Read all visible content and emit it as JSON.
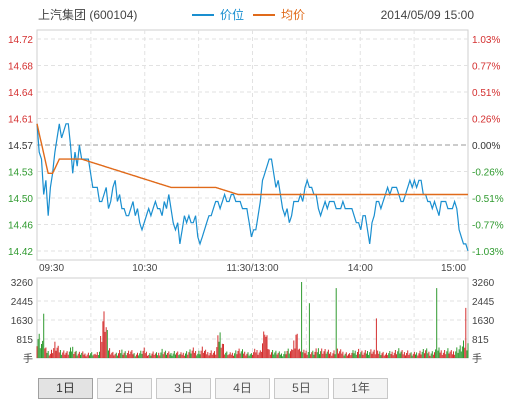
{
  "header": {
    "stock_name": "上汽集团 (600104)",
    "legend_price": "价位",
    "legend_avg": "均价",
    "datetime": "2014/05/09 15:00"
  },
  "colors": {
    "price_line": "#1a8fd0",
    "avg_line": "#e06a1a",
    "up": "#d42f2f",
    "down": "#2f9a2f",
    "grid": "#e2e2e2",
    "prev_close_line": "#999999"
  },
  "tabs": [
    "1日",
    "2日",
    "3日",
    "4日",
    "5日",
    "1年"
  ],
  "active_tab": 0,
  "chart_data": {
    "type": "line",
    "prev_close": 14.57,
    "price_ticks": [
      "14.72",
      "14.68",
      "14.64",
      "14.61",
      "14.57",
      "14.53",
      "14.50",
      "14.46",
      "14.42"
    ],
    "pct_ticks": [
      "1.03%",
      "0.77%",
      "0.51%",
      "0.26%",
      "0.00%",
      "-0.26%",
      "-0.51%",
      "-0.77%",
      "-1.03%"
    ],
    "ylim": [
      14.42,
      14.72
    ],
    "time_ticks": [
      "09:30",
      "10:30",
      "11:30/13:00",
      "14:00",
      "15:00"
    ],
    "price_keyframes": [
      [
        0,
        14.6
      ],
      [
        2,
        14.56
      ],
      [
        4,
        14.55
      ],
      [
        6,
        14.5
      ],
      [
        8,
        14.52
      ],
      [
        10,
        14.47
      ],
      [
        12,
        14.51
      ],
      [
        14,
        14.53
      ],
      [
        16,
        14.56
      ],
      [
        18,
        14.58
      ],
      [
        20,
        14.6
      ],
      [
        22,
        14.58
      ],
      [
        24,
        14.59
      ],
      [
        26,
        14.6
      ],
      [
        28,
        14.6
      ],
      [
        30,
        14.57
      ],
      [
        32,
        14.53
      ],
      [
        34,
        14.56
      ],
      [
        36,
        14.54
      ],
      [
        38,
        14.57
      ],
      [
        40,
        14.55
      ],
      [
        42,
        14.55
      ],
      [
        44,
        14.55
      ],
      [
        46,
        14.55
      ],
      [
        48,
        14.53
      ],
      [
        50,
        14.51
      ],
      [
        52,
        14.51
      ],
      [
        54,
        14.51
      ],
      [
        56,
        14.49
      ],
      [
        58,
        14.49
      ],
      [
        60,
        14.5
      ],
      [
        62,
        14.51
      ],
      [
        64,
        14.48
      ],
      [
        66,
        14.49
      ],
      [
        68,
        14.51
      ],
      [
        70,
        14.52
      ],
      [
        72,
        14.49
      ],
      [
        74,
        14.5
      ],
      [
        76,
        14.48
      ],
      [
        78,
        14.48
      ],
      [
        80,
        14.47
      ],
      [
        82,
        14.47
      ],
      [
        84,
        14.48
      ],
      [
        86,
        14.49
      ],
      [
        88,
        14.47
      ],
      [
        90,
        14.48
      ],
      [
        92,
        14.46
      ],
      [
        94,
        14.45
      ],
      [
        96,
        14.46
      ],
      [
        98,
        14.47
      ],
      [
        100,
        14.48
      ],
      [
        102,
        14.47
      ],
      [
        104,
        14.48
      ],
      [
        106,
        14.49
      ],
      [
        108,
        14.48
      ],
      [
        110,
        14.48
      ],
      [
        112,
        14.47
      ],
      [
        114,
        14.49
      ],
      [
        116,
        14.48
      ],
      [
        118,
        14.5
      ],
      [
        120,
        14.48
      ],
      [
        122,
        14.46
      ],
      [
        124,
        14.45
      ],
      [
        126,
        14.46
      ],
      [
        128,
        14.43
      ],
      [
        130,
        14.45
      ],
      [
        132,
        14.47
      ],
      [
        134,
        14.46
      ],
      [
        136,
        14.47
      ],
      [
        138,
        14.46
      ],
      [
        140,
        14.46
      ],
      [
        142,
        14.47
      ],
      [
        144,
        14.44
      ],
      [
        146,
        14.43
      ],
      [
        148,
        14.44
      ],
      [
        150,
        14.45
      ],
      [
        152,
        14.46
      ],
      [
        154,
        14.47
      ],
      [
        156,
        14.47
      ],
      [
        158,
        14.48
      ],
      [
        160,
        14.49
      ],
      [
        162,
        14.49
      ],
      [
        164,
        14.48
      ],
      [
        166,
        14.49
      ],
      [
        168,
        14.5
      ],
      [
        170,
        14.49
      ],
      [
        172,
        14.49
      ],
      [
        174,
        14.5
      ],
      [
        176,
        14.5
      ],
      [
        178,
        14.49
      ],
      [
        180,
        14.49
      ],
      [
        182,
        14.49
      ],
      [
        184,
        14.48
      ],
      [
        186,
        14.48
      ],
      [
        188,
        14.48
      ],
      [
        190,
        14.46
      ],
      [
        192,
        14.44
      ],
      [
        194,
        14.45
      ],
      [
        196,
        14.45
      ],
      [
        198,
        14.47
      ],
      [
        200,
        14.49
      ],
      [
        202,
        14.52
      ],
      [
        204,
        14.53
      ],
      [
        206,
        14.54
      ],
      [
        208,
        14.55
      ],
      [
        210,
        14.55
      ],
      [
        212,
        14.53
      ],
      [
        214,
        14.51
      ],
      [
        216,
        14.52
      ],
      [
        218,
        14.5
      ],
      [
        220,
        14.48
      ],
      [
        222,
        14.47
      ],
      [
        224,
        14.48
      ],
      [
        226,
        14.46
      ],
      [
        228,
        14.47
      ],
      [
        230,
        14.49
      ],
      [
        232,
        14.49
      ],
      [
        234,
        14.49
      ],
      [
        236,
        14.5
      ],
      [
        238,
        14.49
      ],
      [
        240,
        14.51
      ],
      [
        242,
        14.52
      ],
      [
        244,
        14.51
      ],
      [
        246,
        14.51
      ],
      [
        248,
        14.5
      ],
      [
        250,
        14.5
      ],
      [
        252,
        14.48
      ],
      [
        254,
        14.47
      ],
      [
        256,
        14.48
      ],
      [
        258,
        14.49
      ],
      [
        260,
        14.48
      ],
      [
        262,
        14.49
      ],
      [
        264,
        14.49
      ],
      [
        266,
        14.49
      ],
      [
        268,
        14.48
      ],
      [
        270,
        14.48
      ],
      [
        272,
        14.48
      ],
      [
        274,
        14.49
      ],
      [
        276,
        14.48
      ],
      [
        278,
        14.48
      ],
      [
        280,
        14.48
      ],
      [
        282,
        14.48
      ],
      [
        284,
        14.47
      ],
      [
        286,
        14.46
      ],
      [
        288,
        14.46
      ],
      [
        290,
        14.45
      ],
      [
        292,
        14.47
      ],
      [
        294,
        14.47
      ],
      [
        296,
        14.45
      ],
      [
        298,
        14.43
      ],
      [
        300,
        14.46
      ],
      [
        302,
        14.47
      ],
      [
        304,
        14.49
      ],
      [
        306,
        14.49
      ],
      [
        308,
        14.48
      ],
      [
        310,
        14.49
      ],
      [
        312,
        14.5
      ],
      [
        314,
        14.51
      ],
      [
        316,
        14.5
      ],
      [
        318,
        14.51
      ],
      [
        320,
        14.51
      ],
      [
        322,
        14.51
      ],
      [
        324,
        14.5
      ],
      [
        326,
        14.49
      ],
      [
        328,
        14.49
      ],
      [
        330,
        14.5
      ],
      [
        332,
        14.51
      ],
      [
        334,
        14.52
      ],
      [
        336,
        14.51
      ],
      [
        338,
        14.52
      ],
      [
        340,
        14.51
      ],
      [
        342,
        14.52
      ],
      [
        344,
        14.52
      ],
      [
        346,
        14.5
      ],
      [
        348,
        14.5
      ],
      [
        350,
        14.49
      ],
      [
        352,
        14.49
      ],
      [
        354,
        14.48
      ],
      [
        356,
        14.49
      ],
      [
        358,
        14.48
      ],
      [
        360,
        14.47
      ],
      [
        362,
        14.49
      ],
      [
        364,
        14.49
      ],
      [
        366,
        14.49
      ],
      [
        368,
        14.48
      ],
      [
        370,
        14.48
      ],
      [
        372,
        14.48
      ],
      [
        374,
        14.49
      ],
      [
        376,
        14.48
      ],
      [
        378,
        14.45
      ],
      [
        380,
        14.44
      ],
      [
        382,
        14.43
      ],
      [
        384,
        14.43
      ],
      [
        386,
        14.42
      ]
    ],
    "avg_keyframes": [
      [
        0,
        14.6
      ],
      [
        10,
        14.53
      ],
      [
        14,
        14.53
      ],
      [
        20,
        14.55
      ],
      [
        30,
        14.55
      ],
      [
        40,
        14.55
      ],
      [
        60,
        14.54
      ],
      [
        80,
        14.53
      ],
      [
        100,
        14.52
      ],
      [
        120,
        14.51
      ],
      [
        140,
        14.51
      ],
      [
        160,
        14.51
      ],
      [
        180,
        14.5
      ],
      [
        200,
        14.5
      ],
      [
        220,
        14.5
      ],
      [
        240,
        14.5
      ],
      [
        260,
        14.5
      ],
      [
        300,
        14.5
      ],
      [
        340,
        14.5
      ],
      [
        386,
        14.5
      ]
    ],
    "volume_ticks": [
      "3260",
      "2445",
      "1630",
      "815",
      "手"
    ],
    "volume_max": 3260,
    "volume_keyframes": [
      [
        0,
        1000
      ],
      [
        4,
        600
      ],
      [
        8,
        300
      ],
      [
        12,
        200
      ],
      [
        16,
        500
      ],
      [
        20,
        300
      ],
      [
        24,
        250
      ],
      [
        28,
        200
      ],
      [
        32,
        400
      ],
      [
        36,
        180
      ],
      [
        40,
        200
      ],
      [
        44,
        150
      ],
      [
        48,
        200
      ],
      [
        52,
        120
      ],
      [
        56,
        300
      ],
      [
        60,
        2000
      ],
      [
        64,
        400
      ],
      [
        68,
        200
      ],
      [
        72,
        150
      ],
      [
        76,
        300
      ],
      [
        80,
        200
      ],
      [
        84,
        250
      ],
      [
        88,
        150
      ],
      [
        92,
        200
      ],
      [
        96,
        300
      ],
      [
        100,
        150
      ],
      [
        104,
        200
      ],
      [
        108,
        150
      ],
      [
        112,
        300
      ],
      [
        116,
        200
      ],
      [
        120,
        180
      ],
      [
        124,
        250
      ],
      [
        128,
        150
      ],
      [
        132,
        200
      ],
      [
        136,
        250
      ],
      [
        140,
        300
      ],
      [
        144,
        200
      ],
      [
        148,
        350
      ],
      [
        152,
        200
      ],
      [
        156,
        250
      ],
      [
        160,
        200
      ],
      [
        164,
        1100
      ],
      [
        168,
        250
      ],
      [
        172,
        150
      ],
      [
        176,
        200
      ],
      [
        180,
        300
      ],
      [
        184,
        250
      ],
      [
        188,
        200
      ],
      [
        192,
        150
      ],
      [
        196,
        300
      ],
      [
        200,
        250
      ],
      [
        204,
        1000
      ],
      [
        208,
        300
      ],
      [
        212,
        250
      ],
      [
        216,
        200
      ],
      [
        220,
        150
      ],
      [
        224,
        300
      ],
      [
        228,
        250
      ],
      [
        232,
        1000
      ],
      [
        236,
        200
      ],
      [
        240,
        250
      ],
      [
        244,
        300
      ],
      [
        248,
        200
      ],
      [
        252,
        350
      ],
      [
        256,
        300
      ],
      [
        260,
        250
      ],
      [
        264,
        200
      ],
      [
        268,
        300
      ],
      [
        272,
        250
      ],
      [
        276,
        200
      ],
      [
        280,
        150
      ],
      [
        284,
        250
      ],
      [
        288,
        300
      ],
      [
        292,
        200
      ],
      [
        296,
        250
      ],
      [
        300,
        300
      ],
      [
        304,
        200
      ],
      [
        308,
        250
      ],
      [
        312,
        150
      ],
      [
        316,
        200
      ],
      [
        320,
        250
      ],
      [
        324,
        300
      ],
      [
        328,
        200
      ],
      [
        332,
        250
      ],
      [
        336,
        150
      ],
      [
        340,
        200
      ],
      [
        344,
        250
      ],
      [
        348,
        300
      ],
      [
        352,
        200
      ],
      [
        356,
        250
      ],
      [
        360,
        300
      ],
      [
        364,
        250
      ],
      [
        368,
        300
      ],
      [
        372,
        200
      ],
      [
        376,
        350
      ],
      [
        380,
        400
      ],
      [
        384,
        600
      ],
      [
        386,
        700
      ]
    ],
    "volume_spikes": [
      [
        6,
        1900
      ],
      [
        60,
        2000
      ],
      [
        164,
        1100
      ],
      [
        204,
        1000
      ],
      [
        232,
        1000
      ],
      [
        237,
        3260
      ],
      [
        244,
        2350
      ],
      [
        268,
        3000
      ],
      [
        304,
        1700
      ],
      [
        358,
        3000
      ],
      [
        384,
        2150
      ]
    ]
  }
}
